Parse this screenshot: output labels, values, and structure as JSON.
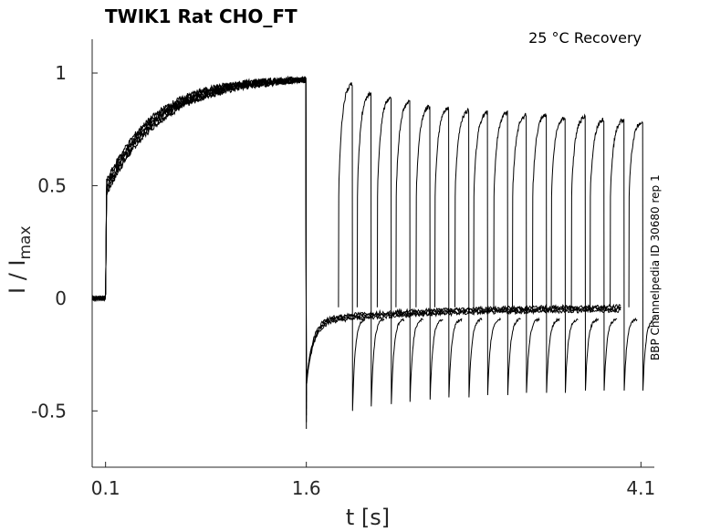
{
  "chart_data": {
    "type": "line",
    "title": "TWIK1  Rat  CHO_FT",
    "annotation": "25 °C  Recovery",
    "side_label": "BBP Channelpedia ID 30680 rep 1",
    "xlabel": "t [s]",
    "ylabel_main": "I / I",
    "ylabel_sub": "max",
    "xlim": [
      0.0,
      4.2
    ],
    "ylim": [
      -0.75,
      1.15
    ],
    "x_ticks": [
      0.1,
      1.6,
      4.1
    ],
    "x_tick_labels": [
      "0.1",
      "1.6",
      "4.1"
    ],
    "y_ticks": [
      1,
      0.5,
      0,
      -0.5
    ],
    "y_tick_labels": [
      "1",
      "0.5",
      "0",
      "-0.5"
    ],
    "trace_color": "#000000",
    "protocol": {
      "baseline_start": 0.0,
      "step_on": 0.1,
      "step_off": 1.6,
      "recovery_pulse_starts": [
        1.84,
        1.98,
        2.13,
        2.27,
        2.42,
        2.56,
        2.71,
        2.85,
        3.0,
        3.14,
        3.29,
        3.43,
        3.58,
        3.72,
        3.87,
        4.01
      ],
      "recovery_pulse_peaks": [
        0.96,
        0.92,
        0.9,
        0.88,
        0.86,
        0.85,
        0.84,
        0.83,
        0.83,
        0.82,
        0.82,
        0.81,
        0.81,
        0.8,
        0.8,
        0.79
      ],
      "recovery_dip_values": [
        -0.5,
        -0.48,
        -0.47,
        -0.46,
        -0.45,
        -0.44,
        -0.44,
        -0.43,
        -0.43,
        -0.42,
        -0.42,
        -0.42,
        -0.41,
        -0.41,
        -0.41,
        -0.41
      ],
      "activation_end_level": 0.98,
      "tail_min": -0.58
    }
  }
}
